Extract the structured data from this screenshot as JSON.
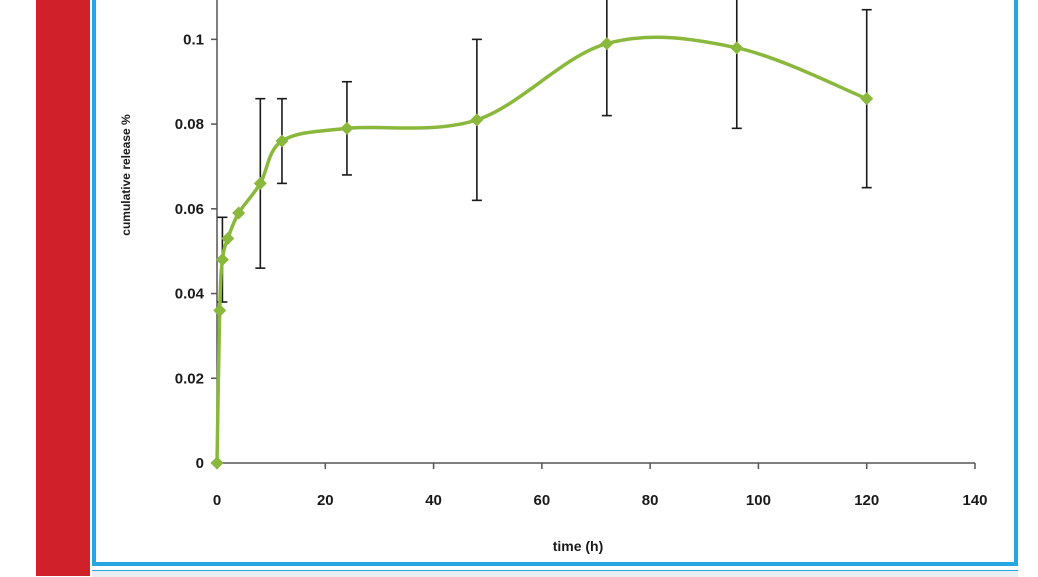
{
  "colors": {
    "left_bar": "#d0202a",
    "frame_border": "#25a8e0",
    "series": "#8ab83c",
    "error_bar": "#1a1a1a"
  },
  "chart_data": {
    "type": "line",
    "xlabel": "time (h)",
    "ylabel": "cumulative release %",
    "xlim": [
      0,
      140
    ],
    "ylim": [
      0,
      0.11
    ],
    "x_ticks": [
      0,
      20,
      40,
      60,
      80,
      100,
      120,
      140
    ],
    "x_tick_labels": [
      "0",
      "20",
      "40",
      "60",
      "80",
      "100",
      "120",
      "140"
    ],
    "y_ticks": [
      0,
      0.02,
      0.04,
      0.06,
      0.08,
      0.1
    ],
    "y_tick_labels": [
      "0",
      "0.02",
      "0.04",
      "0.06",
      "0.08",
      "0.1"
    ],
    "grid": false,
    "legend": "none",
    "series": [
      {
        "x": [
          0,
          0.5,
          1,
          2,
          4,
          8,
          12,
          24,
          48,
          72,
          96,
          120
        ],
        "y": [
          0,
          0.036,
          0.048,
          0.053,
          0.059,
          0.066,
          0.076,
          0.079,
          0.081,
          0.099,
          0.098,
          0.086
        ],
        "err": [
          0,
          0,
          0.01,
          0,
          0,
          0.02,
          0.01,
          0.011,
          0.019,
          0.017,
          0.019,
          0.021
        ]
      }
    ]
  }
}
